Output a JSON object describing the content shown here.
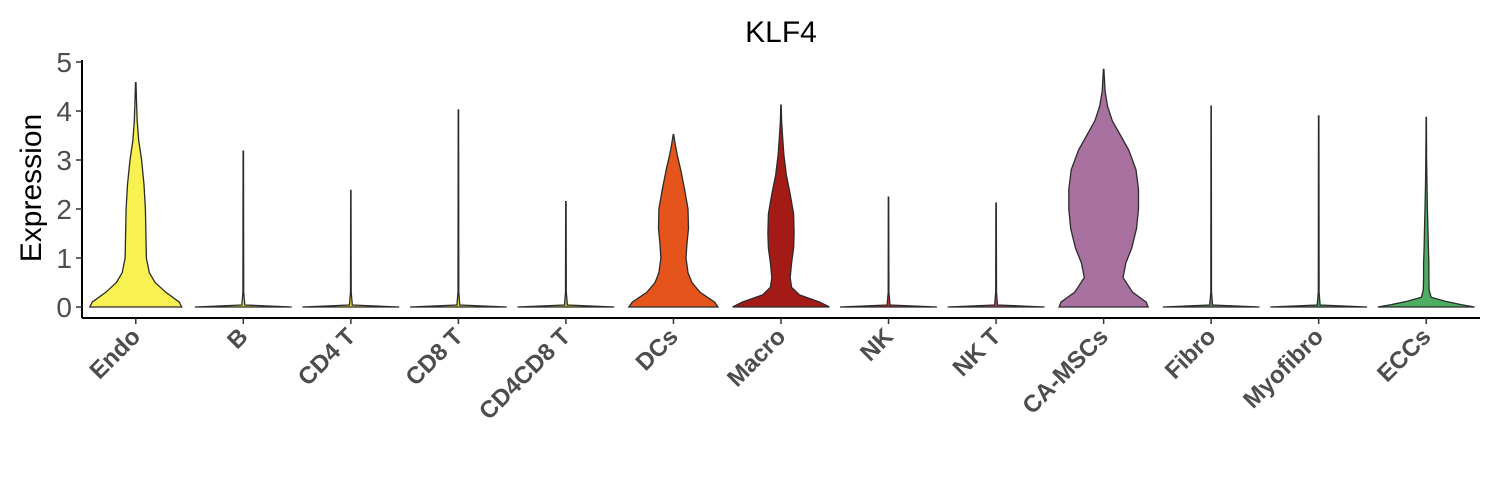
{
  "chart_data": {
    "type": "violin",
    "title": "KLF4",
    "xlabel": "",
    "ylabel": "Expression",
    "ylim": [
      -0.2,
      5.1
    ],
    "yticks": [
      0,
      1,
      2,
      3,
      4,
      5
    ],
    "legend": "none",
    "grid": false,
    "categories": [
      "Endo",
      "B",
      "CD4 T",
      "CD8 T",
      "CD4CD8 T",
      "DCs",
      "Macro",
      "NK",
      "NK T",
      "CA-MSCs",
      "Fibro",
      "Myofibro",
      "ECCs"
    ],
    "colors": [
      "#F7F152",
      "#F2E635",
      "#EDE13A",
      "#E5D23C",
      "#DCC33E",
      "#E5541A",
      "#A31A17",
      "#B6362B",
      "#C24B65",
      "#A9719F",
      "#6C9A6B",
      "#4F9E64",
      "#4CAE61"
    ],
    "series": [
      {
        "category": "Endo",
        "max": 4.58,
        "density": [
          [
            0,
            0.95
          ],
          [
            0.1,
            0.9
          ],
          [
            0.3,
            0.62
          ],
          [
            0.5,
            0.4
          ],
          [
            0.7,
            0.28
          ],
          [
            1.0,
            0.22
          ],
          [
            1.5,
            0.21
          ],
          [
            2.0,
            0.2
          ],
          [
            2.5,
            0.17
          ],
          [
            3.0,
            0.12
          ],
          [
            3.4,
            0.06
          ],
          [
            3.8,
            0.03
          ],
          [
            4.2,
            0.015
          ],
          [
            4.58,
            0.005
          ]
        ]
      },
      {
        "category": "B",
        "max": 3.18,
        "density": [
          [
            0,
            1
          ],
          [
            0.04,
            0.03
          ],
          [
            0.3,
            0.008
          ],
          [
            3.18,
            0.004
          ]
        ]
      },
      {
        "category": "CD4 T",
        "max": 2.38,
        "density": [
          [
            0,
            1
          ],
          [
            0.04,
            0.03
          ],
          [
            0.3,
            0.008
          ],
          [
            2.38,
            0.004
          ]
        ]
      },
      {
        "category": "CD8 T",
        "max": 4.02,
        "density": [
          [
            0,
            1
          ],
          [
            0.04,
            0.03
          ],
          [
            0.3,
            0.008
          ],
          [
            4.02,
            0.004
          ]
        ]
      },
      {
        "category": "CD4CD8 T",
        "max": 2.15,
        "density": [
          [
            0,
            1
          ],
          [
            0.04,
            0.03
          ],
          [
            0.3,
            0.008
          ],
          [
            2.15,
            0.004
          ]
        ]
      },
      {
        "category": "DCs",
        "max": 3.52,
        "density": [
          [
            0,
            0.92
          ],
          [
            0.1,
            0.85
          ],
          [
            0.3,
            0.55
          ],
          [
            0.5,
            0.38
          ],
          [
            0.7,
            0.3
          ],
          [
            1.0,
            0.26
          ],
          [
            1.3,
            0.28
          ],
          [
            1.6,
            0.31
          ],
          [
            2.0,
            0.3
          ],
          [
            2.4,
            0.23
          ],
          [
            2.8,
            0.15
          ],
          [
            3.1,
            0.08
          ],
          [
            3.3,
            0.04
          ],
          [
            3.52,
            0.005
          ]
        ]
      },
      {
        "category": "Macro",
        "max": 4.12,
        "density": [
          [
            0,
            1.0
          ],
          [
            0.1,
            0.8
          ],
          [
            0.25,
            0.38
          ],
          [
            0.4,
            0.22
          ],
          [
            0.6,
            0.19
          ],
          [
            0.9,
            0.22
          ],
          [
            1.2,
            0.26
          ],
          [
            1.5,
            0.27
          ],
          [
            1.9,
            0.26
          ],
          [
            2.3,
            0.19
          ],
          [
            2.7,
            0.11
          ],
          [
            3.1,
            0.06
          ],
          [
            3.5,
            0.03
          ],
          [
            3.8,
            0.012
          ],
          [
            4.12,
            0.004
          ]
        ]
      },
      {
        "category": "NK",
        "max": 2.24,
        "density": [
          [
            0,
            1
          ],
          [
            0.04,
            0.03
          ],
          [
            0.3,
            0.008
          ],
          [
            2.24,
            0.004
          ]
        ]
      },
      {
        "category": "NK T",
        "max": 2.12,
        "density": [
          [
            0,
            1
          ],
          [
            0.04,
            0.03
          ],
          [
            0.3,
            0.008
          ],
          [
            2.12,
            0.004
          ]
        ]
      },
      {
        "category": "CA-MSCs",
        "max": 4.85,
        "density": [
          [
            0,
            0.92
          ],
          [
            0.1,
            0.88
          ],
          [
            0.3,
            0.6
          ],
          [
            0.6,
            0.4
          ],
          [
            0.9,
            0.46
          ],
          [
            1.2,
            0.58
          ],
          [
            1.6,
            0.68
          ],
          [
            2.0,
            0.72
          ],
          [
            2.4,
            0.72
          ],
          [
            2.8,
            0.67
          ],
          [
            3.2,
            0.52
          ],
          [
            3.5,
            0.35
          ],
          [
            3.8,
            0.18
          ],
          [
            4.1,
            0.08
          ],
          [
            4.4,
            0.03
          ],
          [
            4.85,
            0.005
          ]
        ]
      },
      {
        "category": "Fibro",
        "max": 4.1,
        "density": [
          [
            0,
            1
          ],
          [
            0.04,
            0.03
          ],
          [
            0.3,
            0.008
          ],
          [
            4.1,
            0.004
          ]
        ]
      },
      {
        "category": "Myofibro",
        "max": 3.9,
        "density": [
          [
            0,
            1
          ],
          [
            0.04,
            0.03
          ],
          [
            0.3,
            0.008
          ],
          [
            3.9,
            0.004
          ]
        ]
      },
      {
        "category": "ECCs",
        "max": 3.87,
        "density": [
          [
            0,
            1.0
          ],
          [
            0.05,
            0.72
          ],
          [
            0.12,
            0.38
          ],
          [
            0.2,
            0.1
          ],
          [
            0.35,
            0.06
          ],
          [
            0.6,
            0.055
          ],
          [
            0.9,
            0.055
          ],
          [
            1.2,
            0.045
          ],
          [
            1.6,
            0.035
          ],
          [
            2.0,
            0.025
          ],
          [
            2.5,
            0.015
          ],
          [
            3.0,
            0.008
          ],
          [
            3.5,
            0.005
          ],
          [
            3.87,
            0.003
          ]
        ]
      }
    ]
  }
}
